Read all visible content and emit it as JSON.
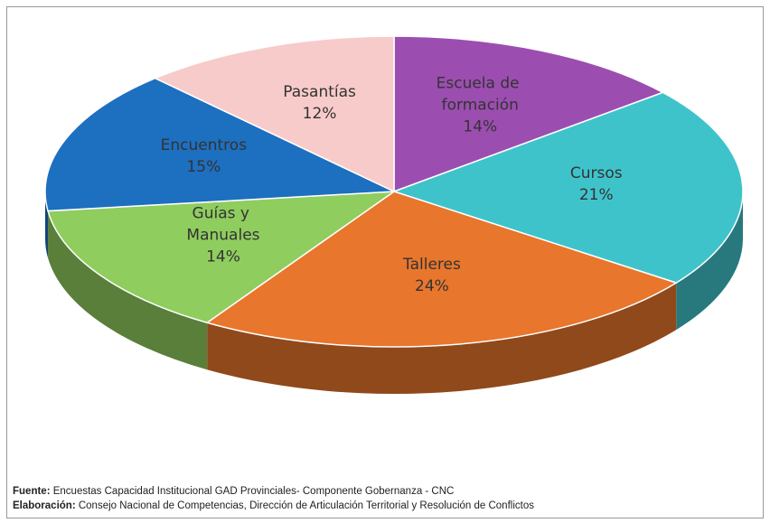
{
  "chart_data": {
    "type": "pie3d",
    "categories": [
      "Escuela de formación",
      "Cursos",
      "Talleres",
      "Guías y Manuales",
      "Encuentros",
      "Pasantías"
    ],
    "values": [
      14,
      21,
      24,
      14,
      15,
      12
    ],
    "value_labels": [
      "14%",
      "21%",
      "24%",
      "14%",
      "15%",
      "12%"
    ],
    "colors": [
      "#9c4eb0",
      "#3fc3cb",
      "#e8762c",
      "#8fcd5f",
      "#1d6fc0",
      "#f7cbca"
    ],
    "notes": [
      {
        "label": "Fuente:",
        "text": "Encuestas Capacidad Institucional GAD Provinciales- Componente Gobernanza - CNC"
      },
      {
        "label": "Elaboración:",
        "text": "Consejo Nacional de Competencias, Dirección de Articulación Territorial y Resolución de Conflictos"
      }
    ]
  }
}
